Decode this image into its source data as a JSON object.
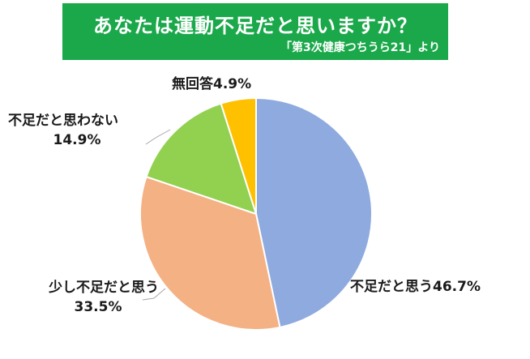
{
  "header": {
    "title": "あなたは運動不足だと思いますか？",
    "source": "「第3次健康つちうら21」より",
    "banner_color": "#1ba84a"
  },
  "chart_data": {
    "type": "pie",
    "title": "あなたは運動不足だと思いますか？",
    "slices": [
      {
        "label": "不足だと思う",
        "value": 46.7,
        "display": "46.7%",
        "color": "#8eaadf"
      },
      {
        "label": "少し不足だと思う",
        "value": 33.5,
        "display": "33.5%",
        "color": "#f4b183"
      },
      {
        "label": "不足だと思わない",
        "value": 14.9,
        "display": "14.9%",
        "color": "#92d050"
      },
      {
        "label": "無回答",
        "value": 4.9,
        "display": "4.9%",
        "color": "#ffc000"
      }
    ],
    "start_angle": "12 o'clock",
    "direction": "clockwise",
    "legend": "none"
  }
}
